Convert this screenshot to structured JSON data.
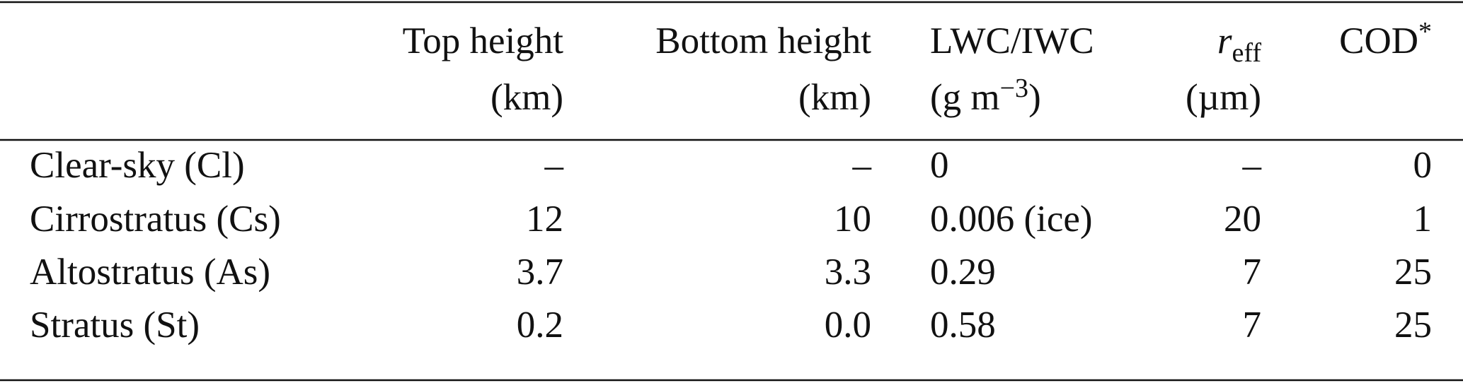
{
  "table": {
    "columns": [
      {
        "line1": "Top height",
        "line2": "(km)"
      },
      {
        "line1": "Bottom height",
        "line2": "(km)"
      },
      {
        "line1": "LWC/IWC",
        "line2": {
          "base": "(g m",
          "sup": "−3",
          "end": ")"
        }
      },
      {
        "line1": {
          "base": "r",
          "sub": "eff"
        },
        "line2": "(µm)"
      },
      {
        "line1": {
          "base": "COD",
          "sup": "*"
        }
      }
    ],
    "rows": [
      [
        "Clear-sky (Cl)",
        "–",
        "–",
        "0",
        "–",
        "0"
      ],
      [
        "Cirrostratus (Cs)",
        "12",
        "10",
        "0.006 (ice)",
        "20",
        "1"
      ],
      [
        "Altostratus (As)",
        "3.7",
        "3.3",
        "0.29",
        "7",
        "25"
      ],
      [
        "Stratus (St)",
        "0.2",
        "0.0",
        "0.58",
        "7",
        "25"
      ]
    ]
  }
}
